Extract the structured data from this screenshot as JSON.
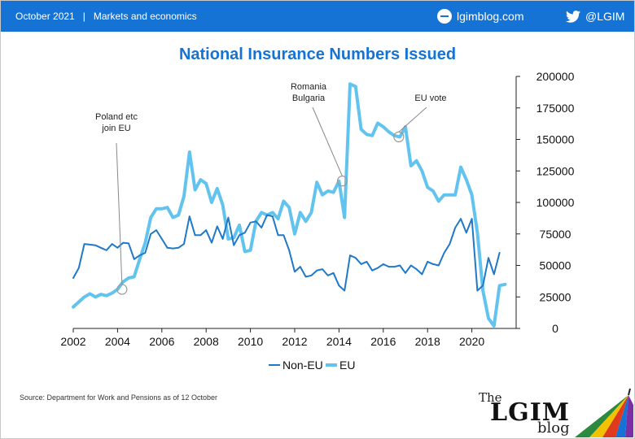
{
  "header": {
    "date": "October 2021",
    "separator": "|",
    "section": "Markets and economics",
    "site": "lgimblog.com",
    "twitter": "@LGIM"
  },
  "footer": {
    "source": "Source: Department for Work and Pensions as of 12 October",
    "logo_the": "The",
    "logo_brand": "LGIM",
    "logo_blog": "blog"
  },
  "colors": {
    "header_bg": "#1573d6",
    "non_eu": "#1f78c8",
    "eu": "#62c4ee",
    "title": "#1573d6"
  },
  "chart_data": {
    "type": "line",
    "title": "National Insurance Numbers Issued",
    "xlim": [
      2002,
      2022
    ],
    "ylim": [
      0,
      200000
    ],
    "x_ticks": [
      2002,
      2004,
      2006,
      2008,
      2010,
      2012,
      2014,
      2016,
      2018,
      2020
    ],
    "y_ticks": [
      0,
      25000,
      50000,
      75000,
      100000,
      125000,
      150000,
      175000,
      200000
    ],
    "y_axis_side": "right",
    "grid": false,
    "legend_position": "bottom-center",
    "series": [
      {
        "name": "Non-EU",
        "color": "#1f78c8",
        "points": [
          [
            2002,
            40000
          ],
          [
            2002.25,
            48000
          ],
          [
            2002.5,
            67000
          ],
          [
            2002.75,
            66500
          ],
          [
            2003,
            66000
          ],
          [
            2003.25,
            64000
          ],
          [
            2003.5,
            62000
          ],
          [
            2003.75,
            67000
          ],
          [
            2004,
            64000
          ],
          [
            2004.25,
            68000
          ],
          [
            2004.5,
            67500
          ],
          [
            2004.75,
            55000
          ],
          [
            2005,
            58000
          ],
          [
            2005.25,
            60000
          ],
          [
            2005.5,
            75000
          ],
          [
            2005.75,
            78000
          ],
          [
            2006,
            71000
          ],
          [
            2006.25,
            64000
          ],
          [
            2006.5,
            63500
          ],
          [
            2006.75,
            64000
          ],
          [
            2007,
            67000
          ],
          [
            2007.25,
            89000
          ],
          [
            2007.5,
            74000
          ],
          [
            2007.75,
            74000
          ],
          [
            2008,
            78000
          ],
          [
            2008.25,
            68000
          ],
          [
            2008.5,
            81000
          ],
          [
            2008.75,
            71000
          ],
          [
            2009,
            88000
          ],
          [
            2009.25,
            66000
          ],
          [
            2009.5,
            74000
          ],
          [
            2009.75,
            76000
          ],
          [
            2010,
            84000
          ],
          [
            2010.25,
            85000
          ],
          [
            2010.5,
            80000
          ],
          [
            2010.75,
            90000
          ],
          [
            2011,
            89000
          ],
          [
            2011.25,
            74000
          ],
          [
            2011.5,
            74000
          ],
          [
            2011.75,
            62000
          ],
          [
            2012,
            45000
          ],
          [
            2012.25,
            49000
          ],
          [
            2012.5,
            41000
          ],
          [
            2012.75,
            42000
          ],
          [
            2013,
            46000
          ],
          [
            2013.25,
            47000
          ],
          [
            2013.5,
            42000
          ],
          [
            2013.75,
            44000
          ],
          [
            2014,
            34000
          ],
          [
            2014.25,
            30000
          ],
          [
            2014.5,
            58000
          ],
          [
            2014.75,
            56000
          ],
          [
            2015,
            51000
          ],
          [
            2015.25,
            53000
          ],
          [
            2015.5,
            46000
          ],
          [
            2015.75,
            48000
          ],
          [
            2016,
            51000
          ],
          [
            2016.25,
            49000
          ],
          [
            2016.5,
            49000
          ],
          [
            2016.75,
            50000
          ],
          [
            2017,
            44000
          ],
          [
            2017.25,
            50000
          ],
          [
            2017.5,
            47000
          ],
          [
            2017.75,
            43000
          ],
          [
            2018,
            53000
          ],
          [
            2018.25,
            51000
          ],
          [
            2018.5,
            50000
          ],
          [
            2018.75,
            60000
          ],
          [
            2019,
            67000
          ],
          [
            2019.25,
            80000
          ],
          [
            2019.5,
            87000
          ],
          [
            2019.75,
            76000
          ],
          [
            2020,
            87000
          ],
          [
            2020.25,
            30000
          ],
          [
            2020.5,
            34000
          ],
          [
            2020.75,
            56000
          ],
          [
            2021,
            43000
          ],
          [
            2021.25,
            60000
          ]
        ]
      },
      {
        "name": "EU",
        "color": "#62c4ee",
        "points": [
          [
            2002,
            17000
          ],
          [
            2002.25,
            21000
          ],
          [
            2002.5,
            25000
          ],
          [
            2002.75,
            27500
          ],
          [
            2003,
            25000
          ],
          [
            2003.25,
            27000
          ],
          [
            2003.5,
            26000
          ],
          [
            2003.75,
            28000
          ],
          [
            2004,
            31000
          ],
          [
            2004.25,
            37000
          ],
          [
            2004.5,
            40000
          ],
          [
            2004.75,
            41000
          ],
          [
            2005,
            55000
          ],
          [
            2005.25,
            68000
          ],
          [
            2005.5,
            88000
          ],
          [
            2005.75,
            95000
          ],
          [
            2006,
            95000
          ],
          [
            2006.25,
            96000
          ],
          [
            2006.5,
            88000
          ],
          [
            2006.75,
            90000
          ],
          [
            2007,
            105000
          ],
          [
            2007.25,
            140000
          ],
          [
            2007.5,
            110000
          ],
          [
            2007.75,
            118000
          ],
          [
            2008,
            115000
          ],
          [
            2008.25,
            100000
          ],
          [
            2008.5,
            111000
          ],
          [
            2008.75,
            98000
          ],
          [
            2009,
            71000
          ],
          [
            2009.25,
            72000
          ],
          [
            2009.5,
            82000
          ],
          [
            2009.75,
            61000
          ],
          [
            2010,
            62000
          ],
          [
            2010.25,
            85000
          ],
          [
            2010.5,
            92000
          ],
          [
            2010.75,
            90000
          ],
          [
            2011,
            92000
          ],
          [
            2011.25,
            87000
          ],
          [
            2011.5,
            101000
          ],
          [
            2011.75,
            96000
          ],
          [
            2012,
            75000
          ],
          [
            2012.25,
            92000
          ],
          [
            2012.5,
            85000
          ],
          [
            2012.75,
            92000
          ],
          [
            2013,
            116000
          ],
          [
            2013.25,
            106000
          ],
          [
            2013.5,
            109000
          ],
          [
            2013.75,
            108000
          ],
          [
            2014,
            117000
          ],
          [
            2014.25,
            88000
          ],
          [
            2014.5,
            194000
          ],
          [
            2014.75,
            192000
          ],
          [
            2015,
            158000
          ],
          [
            2015.25,
            154000
          ],
          [
            2015.5,
            153000
          ],
          [
            2015.75,
            163000
          ],
          [
            2016,
            160000
          ],
          [
            2016.25,
            156000
          ],
          [
            2016.5,
            153000
          ],
          [
            2016.75,
            152000
          ],
          [
            2017,
            160000
          ],
          [
            2017.25,
            129000
          ],
          [
            2017.5,
            133000
          ],
          [
            2017.75,
            125000
          ],
          [
            2018,
            112000
          ],
          [
            2018.25,
            109000
          ],
          [
            2018.5,
            101000
          ],
          [
            2018.75,
            106000
          ],
          [
            2019,
            106000
          ],
          [
            2019.25,
            106000
          ],
          [
            2019.5,
            128000
          ],
          [
            2019.75,
            118000
          ],
          [
            2020,
            106000
          ],
          [
            2020.25,
            76000
          ],
          [
            2020.5,
            30000
          ],
          [
            2020.75,
            8000
          ],
          [
            2021,
            2000
          ],
          [
            2021.25,
            34000
          ],
          [
            2021.5,
            35000
          ]
        ]
      }
    ],
    "annotations": [
      {
        "lines": [
          "Poland etc",
          "join EU"
        ],
        "x": 2004.2,
        "y": 31000
      },
      {
        "lines": [
          "Romania",
          "Bulgaria"
        ],
        "x": 2014.15,
        "y": 117000
      },
      {
        "lines": [
          "EU vote"
        ],
        "x": 2016.7,
        "y": 152000
      }
    ]
  }
}
